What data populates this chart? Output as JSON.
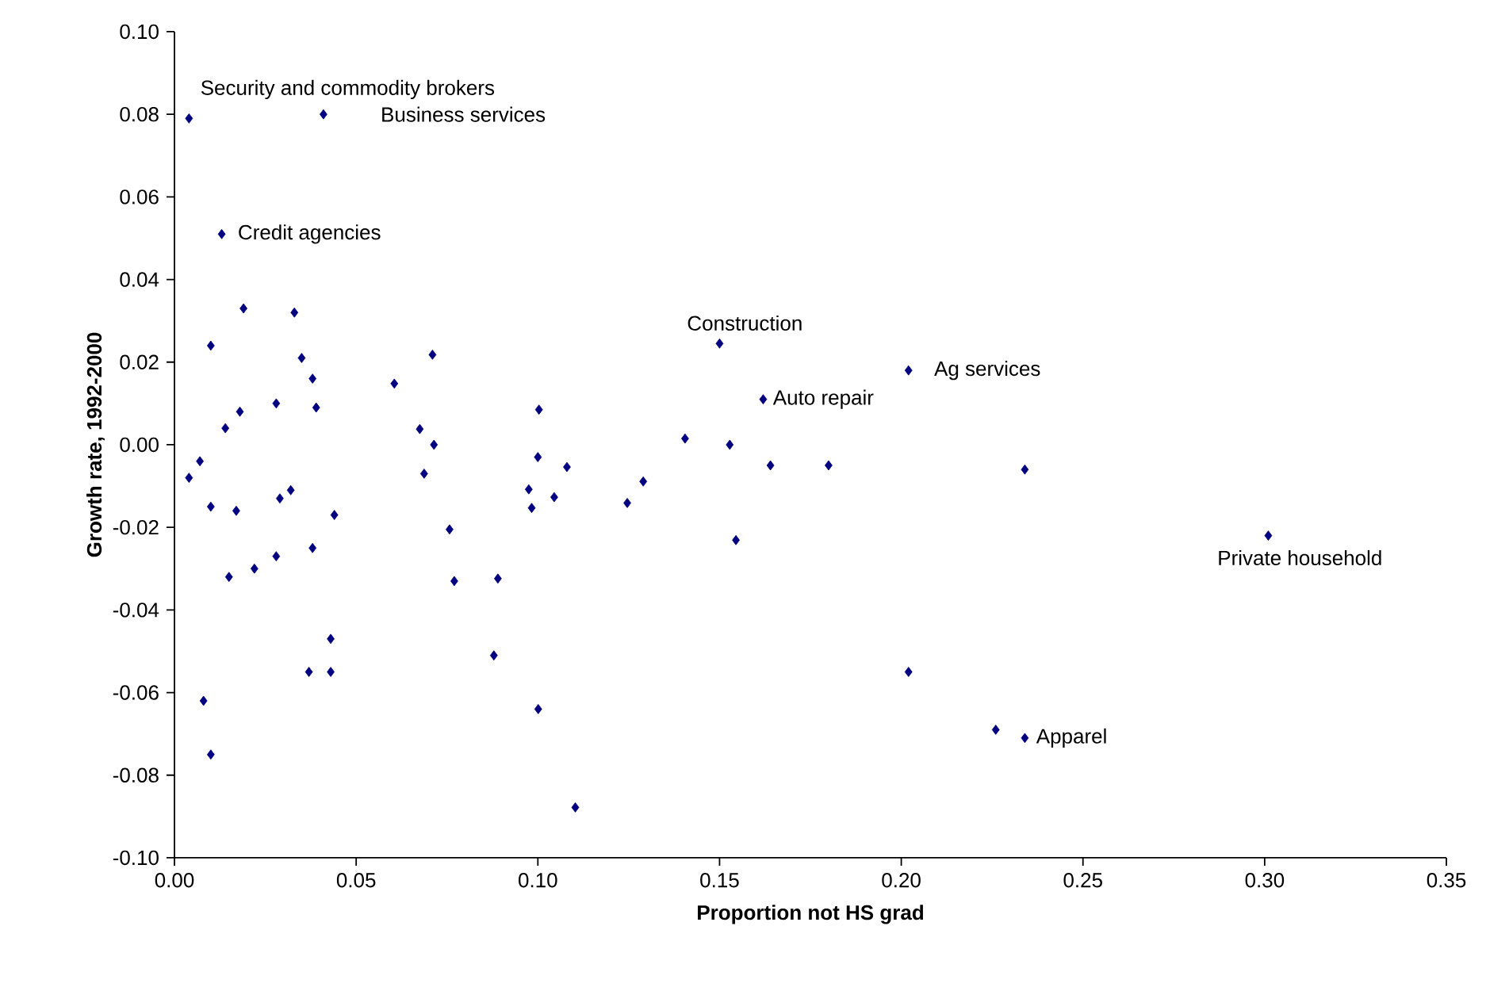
{
  "chart_data": {
    "type": "scatter",
    "xlabel": "Proportion not HS grad",
    "ylabel": "Growth rate, 1992-2000",
    "marker": "diamond",
    "grid": false,
    "xlim": [
      0,
      0.35
    ],
    "ylim": [
      -0.1,
      0.1
    ],
    "xticks": [
      {
        "value": 0,
        "label": "0.00"
      },
      {
        "value": 0.05,
        "label": "0.05"
      },
      {
        "value": 0.1,
        "label": "0.10"
      },
      {
        "value": 0.15,
        "label": "0.15"
      },
      {
        "value": 0.2,
        "label": "0.20"
      },
      {
        "value": 0.25,
        "label": "0.25"
      },
      {
        "value": 0.3,
        "label": "0.30"
      },
      {
        "value": 0.35,
        "label": "0.35"
      }
    ],
    "yticks": [
      {
        "value": -0.1,
        "label": "-0.10"
      },
      {
        "value": -0.08,
        "label": "-0.08"
      },
      {
        "value": -0.06,
        "label": "-0.06"
      },
      {
        "value": -0.04,
        "label": "-0.04"
      },
      {
        "value": -0.02,
        "label": "-0.02"
      },
      {
        "value": 0,
        "label": "0.00"
      },
      {
        "value": 0.02,
        "label": "0.02"
      },
      {
        "value": 0.04,
        "label": "0.04"
      },
      {
        "value": 0.06,
        "label": "0.06"
      },
      {
        "value": 0.08,
        "label": "0.08"
      },
      {
        "value": 0.1,
        "label": "0.10"
      }
    ],
    "series": [
      {
        "color": "#000080",
        "x": [
          0.004,
          0.041,
          0.013,
          0.019,
          0.033,
          0.01,
          0.035,
          0.038,
          0.071,
          0.0605,
          0.039,
          0.018,
          0.028,
          0.014,
          0.0675,
          0.0714,
          0.004,
          0.007,
          0.01,
          0.017,
          0.029,
          0.032,
          0.044,
          0.0687,
          0.015,
          0.022,
          0.028,
          0.038,
          0.0757,
          0.077,
          0.043,
          0.037,
          0.043,
          0.008,
          0.01,
          0.0879,
          0.089,
          0.0975,
          0.0983,
          0.1003,
          0.1,
          0.1045,
          0.108,
          0.1001,
          0.1103,
          0.1246,
          0.129,
          0.1405,
          0.15,
          0.1528,
          0.1545,
          0.162,
          0.164,
          0.18,
          0.202,
          0.202,
          0.226,
          0.234,
          0.234,
          0.301
        ],
        "values": [
          0.079,
          0.08,
          0.051,
          0.033,
          0.032,
          0.024,
          0.021,
          0.016,
          0.0218,
          0.0148,
          0.009,
          0.008,
          0.01,
          0.004,
          0.0038,
          0.0,
          -0.008,
          -0.004,
          -0.015,
          -0.016,
          -0.013,
          -0.011,
          -0.017,
          -0.007,
          -0.032,
          -0.03,
          -0.027,
          -0.025,
          -0.0205,
          -0.033,
          -0.047,
          -0.055,
          -0.055,
          -0.062,
          -0.075,
          -0.051,
          -0.0324,
          -0.0108,
          -0.0153,
          0.0085,
          -0.003,
          -0.0127,
          -0.0054,
          -0.064,
          -0.0878,
          -0.0141,
          -0.0089,
          0.0015,
          0.0245,
          0.0,
          -0.0231,
          0.011,
          -0.005,
          -0.005,
          0.018,
          -0.055,
          -0.069,
          -0.071,
          -0.006,
          -0.022
        ]
      }
    ],
    "annotations": [
      {
        "text": "Security and commodity brokers",
        "x": 0.004,
        "y": 0.079
      },
      {
        "text": "Business services",
        "x": 0.041,
        "y": 0.08
      },
      {
        "text": "Credit agencies",
        "x": 0.013,
        "y": 0.051
      },
      {
        "text": "Construction",
        "x": 0.15,
        "y": 0.0245
      },
      {
        "text": "Ag services",
        "x": 0.202,
        "y": 0.018
      },
      {
        "text": "Auto repair",
        "x": 0.162,
        "y": 0.011
      },
      {
        "text": "Private household",
        "x": 0.301,
        "y": -0.022
      },
      {
        "text": "Apparel",
        "x": 0.234,
        "y": -0.071
      }
    ]
  }
}
